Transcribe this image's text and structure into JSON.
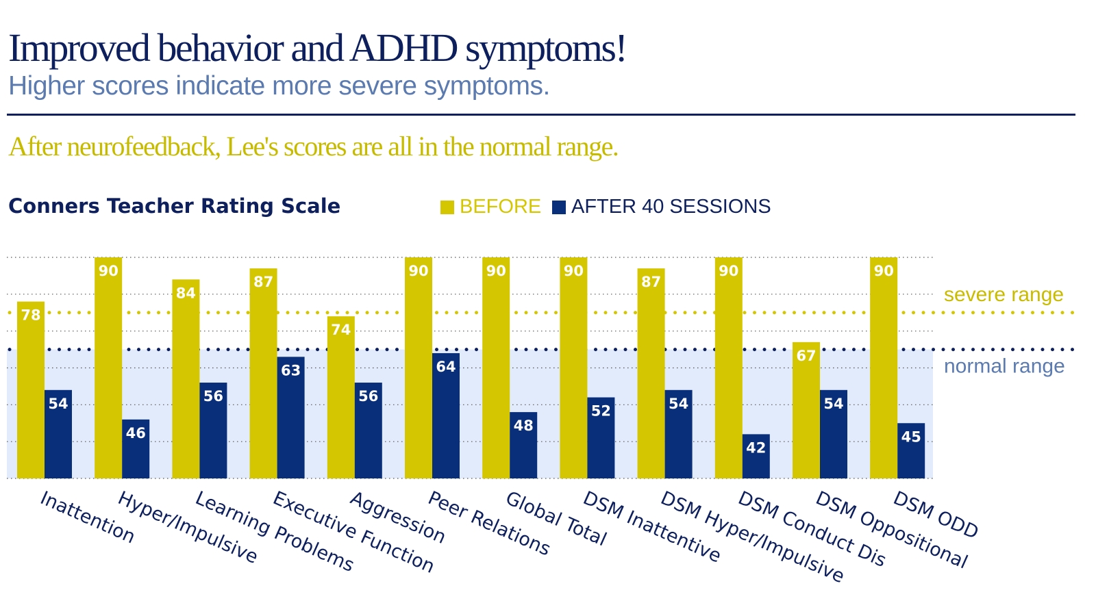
{
  "header": {
    "title": "Improved behavior and ADHD symptoms!",
    "subtitle": "Higher scores indicate more severe symptoms.",
    "note": "After neurofeedback, Lee's scores are all in the normal range."
  },
  "colors": {
    "before": "#d4c600",
    "after": "#0a2f7a",
    "title": "#0d1f5c",
    "subtitle": "#5b7bb0",
    "normal_band": "#e1ebfb"
  },
  "chart_data": {
    "type": "bar",
    "title": "Conners Teacher Rating Scale",
    "categories": [
      "Inattention",
      "Hyper/Impulsive",
      "Learning Problems",
      "Executive Function",
      "Aggression",
      "Peer Relations",
      "Global Total",
      "DSM Inattentive",
      "DSM Hyper/Impulsive",
      "DSM Conduct Dis",
      "DSM Oppositional",
      "DSM ODD"
    ],
    "series": [
      {
        "name": "BEFORE",
        "values": [
          78,
          90,
          84,
          87,
          74,
          90,
          90,
          90,
          87,
          90,
          67,
          90
        ]
      },
      {
        "name": "AFTER 40 SESSIONS",
        "values": [
          54,
          46,
          56,
          63,
          56,
          64,
          48,
          52,
          54,
          42,
          54,
          45
        ]
      }
    ],
    "ylim": [
      30,
      90
    ],
    "grid": true,
    "gridlines": [
      30,
      40,
      50,
      60,
      70,
      80,
      90
    ],
    "legend_position": "top",
    "reference_lines": [
      {
        "label": "severe range",
        "value": 75
      },
      {
        "label": "normal range",
        "value": 65
      }
    ],
    "normal_band": [
      30,
      65
    ]
  }
}
